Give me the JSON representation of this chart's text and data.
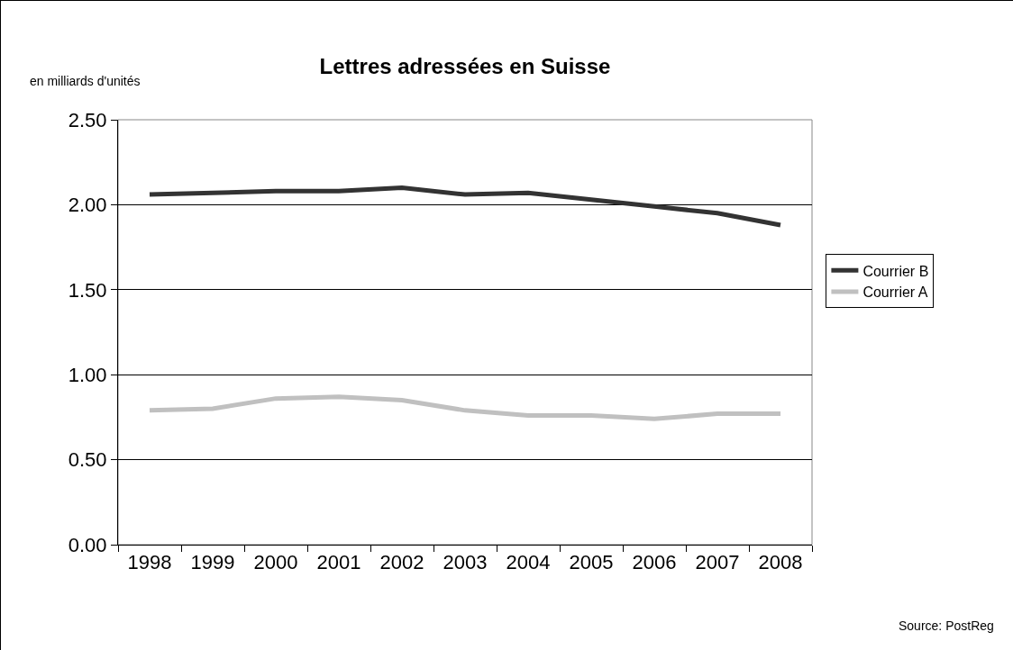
{
  "chart_data": {
    "type": "line",
    "title": "Lettres adressées en Suisse",
    "ylabel": "en milliards d'unités",
    "categories": [
      "1998",
      "1999",
      "2000",
      "2001",
      "2002",
      "2003",
      "2004",
      "2005",
      "2006",
      "2007",
      "2008"
    ],
    "series": [
      {
        "name": "Courrier B",
        "color": "#333333",
        "values": [
          2.06,
          2.07,
          2.08,
          2.08,
          2.1,
          2.06,
          2.07,
          2.03,
          1.99,
          1.95,
          1.88
        ]
      },
      {
        "name": "Courrier A",
        "color": "#c0c0c0",
        "values": [
          0.79,
          0.8,
          0.86,
          0.87,
          0.85,
          0.79,
          0.76,
          0.76,
          0.74,
          0.77,
          0.77
        ]
      }
    ],
    "ylim": [
      0,
      2.5
    ],
    "yticks": [
      {
        "value": 0,
        "label": "0.00"
      },
      {
        "value": 0.5,
        "label": "0.50"
      },
      {
        "value": 1,
        "label": "1.00"
      },
      {
        "value": 1.5,
        "label": "1.50"
      },
      {
        "value": 2,
        "label": "2.00"
      },
      {
        "value": 2.5,
        "label": "2.50"
      }
    ],
    "grid": "y",
    "legend": "right",
    "marker": "none",
    "line_style": "solid",
    "annotations": [
      "Source: PostReg"
    ]
  }
}
